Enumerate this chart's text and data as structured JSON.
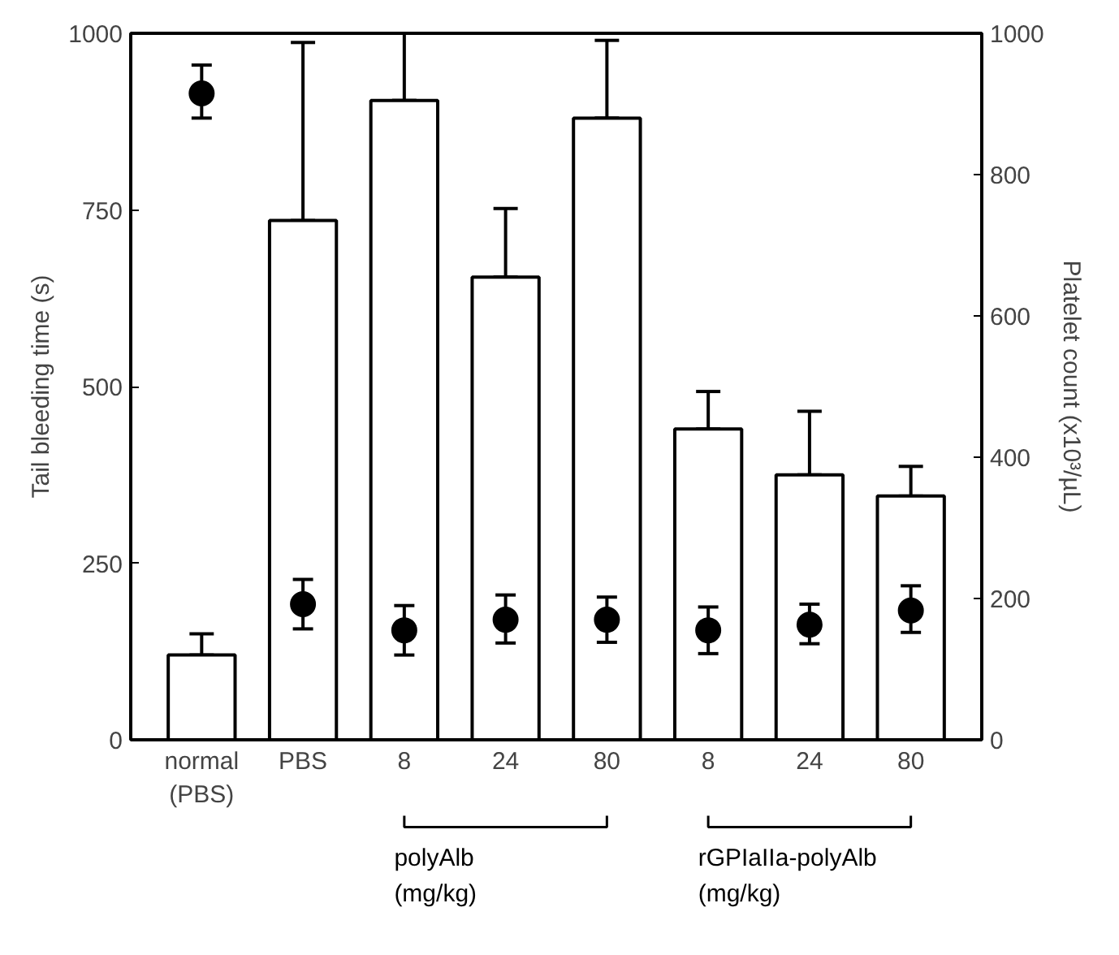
{
  "chart_data": {
    "type": "bar",
    "categories": [
      "normal\n(PBS)",
      "PBS",
      "8",
      "24",
      "80",
      "8",
      "24",
      "80"
    ],
    "ylabel": "Tail bleeding time (s)",
    "y2label": "Platelet count (x10³/µL)",
    "ylim": [
      0,
      1000
    ],
    "yticks": [
      0,
      250,
      500,
      750,
      1000
    ],
    "y2lim": [
      0,
      1000
    ],
    "y2ticks": [
      0,
      200,
      400,
      600,
      800,
      1000
    ],
    "series": [
      {
        "color": "#ffffff",
        "values": [
          120,
          735,
          905,
          655,
          880,
          440,
          375,
          345
        ],
        "errors": [
          [
            120,
            150
          ],
          [
            735,
            987
          ],
          [
            905,
            1000
          ],
          [
            655,
            752
          ],
          [
            880,
            990
          ],
          [
            440,
            493
          ],
          [
            375,
            465
          ],
          [
            345,
            387
          ]
        ]
      },
      {
        "type": "scatter",
        "axis": "y2",
        "marker": "circle",
        "color": "#000000",
        "values": [
          915,
          192,
          155,
          170,
          170,
          155,
          163,
          183
        ],
        "errors": [
          [
            880,
            955
          ],
          [
            157,
            227
          ],
          [
            120,
            190
          ],
          [
            137,
            205
          ],
          [
            138,
            202
          ],
          [
            122,
            188
          ],
          [
            136,
            192
          ],
          [
            152,
            218
          ]
        ]
      }
    ],
    "annotations": [
      "polyAlb\n(mg/kg)",
      "rGPIaIIa-polyAlb\n(mg/kg)"
    ]
  }
}
